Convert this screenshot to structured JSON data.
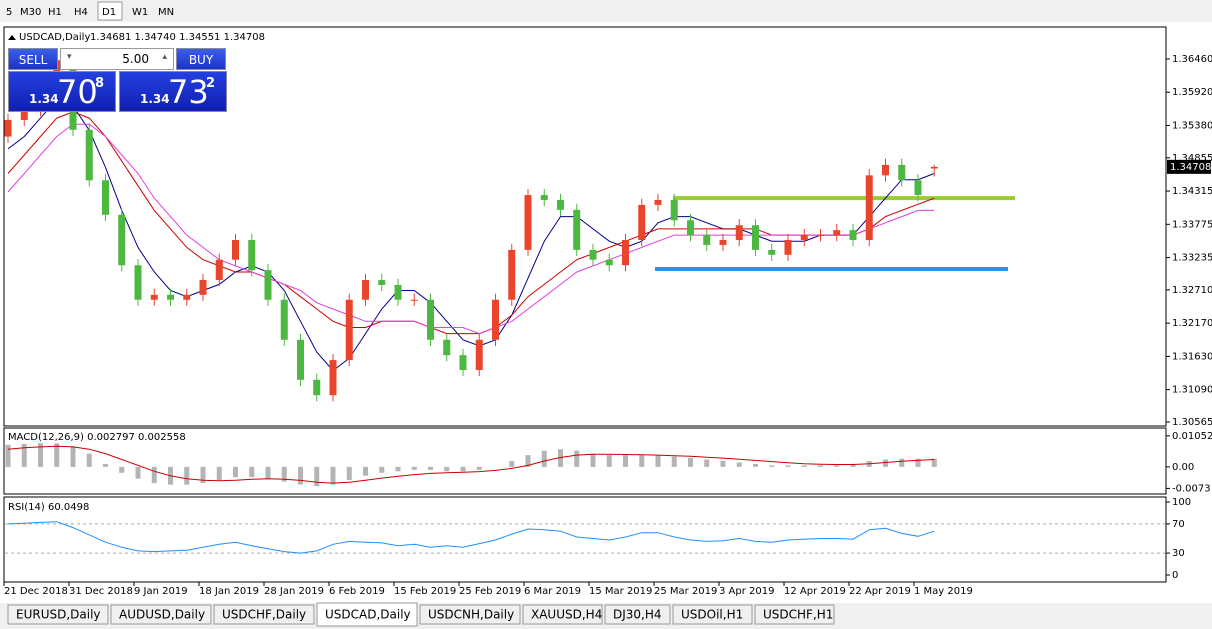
{
  "toolbar": {
    "buttons": [
      "5",
      "M30",
      "H1",
      "H4",
      "D1",
      "W1",
      "MN"
    ],
    "active": 4
  },
  "trade_panel": {
    "sell": "SELL",
    "buy": "BUY",
    "lots": "5.00",
    "bid": {
      "prefix": "1.34",
      "big": "70",
      "small": "8"
    },
    "ask": {
      "prefix": "1.34",
      "big": "73",
      "small": "2"
    }
  },
  "chart_data": {
    "type": "candlestick",
    "title": "USDCAD,Daily",
    "ohlc_text": "1.34681 1.34740 1.34551 1.34708",
    "categories": [
      "21 Dec 2018",
      null,
      null,
      null,
      "31 Dec 2018",
      null,
      null,
      null,
      "9 Jan 2019",
      null,
      null,
      null,
      "18 Jan 2019",
      null,
      null,
      null,
      "28 Jan 2019",
      null,
      null,
      null,
      "6 Feb 2019",
      null,
      null,
      null,
      "15 Feb 2019",
      null,
      null,
      null,
      "25 Feb 2019",
      null,
      null,
      null,
      "6 Mar 2019",
      null,
      null,
      null,
      "15 Mar 2019",
      null,
      null,
      null,
      "25 Mar 2019",
      null,
      null,
      null,
      "3 Apr 2019",
      null,
      null,
      null,
      "12 Apr 2019",
      null,
      null,
      null,
      "22 Apr 2019",
      null,
      null,
      null,
      "1 May 2019",
      null
    ],
    "open": [
      1.352,
      1.3547,
      1.3563,
      1.3596,
      1.3644,
      1.3531,
      1.3449,
      1.3393,
      1.3311,
      1.3255,
      1.3263,
      1.3255,
      1.3263,
      1.3287,
      1.332,
      1.3352,
      1.3303,
      1.3255,
      1.319,
      1.3125,
      1.31,
      1.3157,
      1.3255,
      1.3287,
      1.3279,
      1.3255,
      1.3255,
      1.319,
      1.3165,
      1.3141,
      1.319,
      1.3255,
      1.3336,
      1.3425,
      1.3417,
      1.3401,
      1.3336,
      1.332,
      1.3311,
      1.3352,
      1.3409,
      1.3417,
      1.3384,
      1.336,
      1.3344,
      1.3352,
      1.3376,
      1.3336,
      1.3328,
      1.3352,
      1.336,
      1.336,
      1.3368,
      1.3352,
      1.3457,
      1.3474,
      1.3449,
      1.34681
    ],
    "high": [
      1.3557,
      1.3573,
      1.3606,
      1.3654,
      1.3654,
      1.3541,
      1.3459,
      1.3403,
      1.3321,
      1.3273,
      1.3273,
      1.3273,
      1.3297,
      1.333,
      1.3362,
      1.3362,
      1.3313,
      1.3265,
      1.32,
      1.3135,
      1.3167,
      1.3265,
      1.3297,
      1.3297,
      1.3289,
      1.3265,
      1.3265,
      1.32,
      1.3175,
      1.32,
      1.3265,
      1.3346,
      1.3435,
      1.3435,
      1.3427,
      1.3411,
      1.3346,
      1.333,
      1.3362,
      1.3419,
      1.3427,
      1.3427,
      1.3394,
      1.337,
      1.3362,
      1.3386,
      1.3386,
      1.3346,
      1.3362,
      1.337,
      1.337,
      1.3378,
      1.3378,
      1.3467,
      1.3484,
      1.3484,
      1.3459,
      1.3474
    ],
    "low": [
      1.351,
      1.3537,
      1.3553,
      1.3586,
      1.3521,
      1.3439,
      1.3383,
      1.3301,
      1.3245,
      1.3245,
      1.3245,
      1.3245,
      1.3253,
      1.3277,
      1.331,
      1.3293,
      1.3245,
      1.318,
      1.3115,
      1.309,
      1.309,
      1.3147,
      1.3245,
      1.3269,
      1.3245,
      1.3245,
      1.318,
      1.3155,
      1.3131,
      1.3131,
      1.318,
      1.3245,
      1.3326,
      1.3407,
      1.3391,
      1.3326,
      1.331,
      1.3301,
      1.3301,
      1.3342,
      1.3399,
      1.3374,
      1.335,
      1.3334,
      1.3334,
      1.3342,
      1.3326,
      1.3318,
      1.3318,
      1.3342,
      1.335,
      1.335,
      1.3342,
      1.3342,
      1.3447,
      1.3439,
      1.3415,
      1.34551
    ],
    "close": [
      1.3547,
      1.3563,
      1.3596,
      1.3644,
      1.3531,
      1.3449,
      1.3393,
      1.3311,
      1.3255,
      1.3263,
      1.3255,
      1.3263,
      1.3287,
      1.332,
      1.3352,
      1.3303,
      1.3255,
      1.319,
      1.3125,
      1.31,
      1.3157,
      1.3255,
      1.3287,
      1.3279,
      1.3255,
      1.3255,
      1.319,
      1.3165,
      1.3141,
      1.319,
      1.3255,
      1.3336,
      1.3425,
      1.3417,
      1.3401,
      1.3336,
      1.332,
      1.3311,
      1.3352,
      1.3409,
      1.3417,
      1.3384,
      1.336,
      1.3344,
      1.3352,
      1.3376,
      1.3336,
      1.3328,
      1.3352,
      1.336,
      1.336,
      1.3368,
      1.3352,
      1.3457,
      1.3474,
      1.3449,
      1.3425,
      1.34708
    ],
    "up_color": "#e8452c",
    "down_color": "#4cb83f",
    "ylim": [
      1.305,
      1.3693
    ],
    "yticks": [
      {
        "value": 1.3646,
        "label": "1.36460"
      },
      {
        "value": 1.3592,
        "label": "1.35920"
      },
      {
        "value": 1.3538,
        "label": "1.35380"
      },
      {
        "value": 1.34855,
        "label": "1.34855"
      },
      {
        "value": 1.34315,
        "label": "1.34315"
      },
      {
        "value": 1.33775,
        "label": "1.33775"
      },
      {
        "value": 1.33235,
        "label": "1.33235"
      },
      {
        "value": 1.3271,
        "label": "1.32710"
      },
      {
        "value": 1.3217,
        "label": "1.32170"
      },
      {
        "value": 1.3163,
        "label": "1.31630"
      },
      {
        "value": 1.3109,
        "label": "1.31090"
      },
      {
        "value": 1.30565,
        "label": "1.30565"
      }
    ],
    "moving_averages": [
      {
        "color": "#00008b",
        "values": [
          1.35,
          1.352,
          1.355,
          1.358,
          1.357,
          1.353,
          1.347,
          1.34,
          1.334,
          1.33,
          1.327,
          1.326,
          1.327,
          1.328,
          1.33,
          1.331,
          1.33,
          1.327,
          1.322,
          1.317,
          1.314,
          1.316,
          1.32,
          1.324,
          1.327,
          1.327,
          1.325,
          1.322,
          1.319,
          1.318,
          1.319,
          1.323,
          1.329,
          1.335,
          1.339,
          1.339,
          1.337,
          1.335,
          1.334,
          1.335,
          1.338,
          1.339,
          1.339,
          1.338,
          1.337,
          1.337,
          1.336,
          1.335,
          1.335,
          1.335,
          1.336,
          1.336,
          1.336,
          1.339,
          1.342,
          1.345,
          1.345,
          1.346
        ]
      },
      {
        "color": "#cc0000",
        "values": [
          1.346,
          1.349,
          1.352,
          1.355,
          1.356,
          1.355,
          1.352,
          1.348,
          1.344,
          1.34,
          1.337,
          1.334,
          1.332,
          1.331,
          1.33,
          1.33,
          1.329,
          1.328,
          1.326,
          1.324,
          1.322,
          1.321,
          1.321,
          1.322,
          1.322,
          1.322,
          1.321,
          1.32,
          1.32,
          1.32,
          1.321,
          1.323,
          1.326,
          1.328,
          1.33,
          1.332,
          1.333,
          1.334,
          1.335,
          1.336,
          1.337,
          1.337,
          1.337,
          1.337,
          1.337,
          1.337,
          1.337,
          1.336,
          1.336,
          1.336,
          1.336,
          1.336,
          1.336,
          1.337,
          1.339,
          1.34,
          1.341,
          1.342
        ]
      },
      {
        "color": "#e040e0",
        "values": [
          1.343,
          1.346,
          1.349,
          1.352,
          1.354,
          1.354,
          1.352,
          1.349,
          1.346,
          1.342,
          1.339,
          1.336,
          1.334,
          1.332,
          1.331,
          1.33,
          1.329,
          1.328,
          1.327,
          1.325,
          1.324,
          1.323,
          1.322,
          1.322,
          1.322,
          1.322,
          1.321,
          1.321,
          1.321,
          1.32,
          1.321,
          1.322,
          1.324,
          1.326,
          1.328,
          1.33,
          1.331,
          1.332,
          1.333,
          1.334,
          1.335,
          1.336,
          1.336,
          1.336,
          1.336,
          1.336,
          1.336,
          1.336,
          1.336,
          1.336,
          1.336,
          1.336,
          1.336,
          1.337,
          1.338,
          1.339,
          1.34,
          1.34
        ]
      }
    ],
    "levels": [
      {
        "value": 1.342,
        "color": "#9acd32"
      },
      {
        "value": 1.3305,
        "color": "#3a8fd9"
      }
    ],
    "indicators": [
      {
        "type": "macd",
        "label": "MACD(12,26,9) 0.002797 0.002558",
        "histogram_color": "#b4b4b4",
        "signal_color": "#cc0000",
        "histogram": [
          0.0075,
          0.0078,
          0.008,
          0.008,
          0.007,
          0.0045,
          0.001,
          -0.002,
          -0.004,
          -0.0055,
          -0.006,
          -0.006,
          -0.0055,
          -0.0045,
          -0.0035,
          -0.0035,
          -0.004,
          -0.005,
          -0.006,
          -0.0065,
          -0.006,
          -0.0045,
          -0.003,
          -0.002,
          -0.0015,
          -0.001,
          -0.001,
          -0.0015,
          -0.0015,
          -0.001,
          0,
          0.002,
          0.004,
          0.0055,
          0.006,
          0.0055,
          0.0045,
          0.004,
          0.004,
          0.004,
          0.004,
          0.0035,
          0.003,
          0.0025,
          0.002,
          0.0015,
          0.001,
          0.0005,
          0.0005,
          0.0005,
          0.0005,
          0.0005,
          0.001,
          0.002,
          0.0025,
          0.0028,
          0.0028,
          0.0028
        ],
        "signal": [
          0.006,
          0.0065,
          0.0068,
          0.007,
          0.0068,
          0.006,
          0.0045,
          0.0025,
          0.0005,
          -0.0015,
          -0.003,
          -0.004,
          -0.0045,
          -0.0047,
          -0.0045,
          -0.0042,
          -0.004,
          -0.0042,
          -0.0046,
          -0.0052,
          -0.0055,
          -0.0052,
          -0.0045,
          -0.0038,
          -0.0032,
          -0.0026,
          -0.0022,
          -0.002,
          -0.0018,
          -0.0016,
          -0.0012,
          -0.0005,
          0.0005,
          0.002,
          0.0032,
          0.004,
          0.0043,
          0.0043,
          0.0042,
          0.0041,
          0.004,
          0.0038,
          0.0036,
          0.0033,
          0.003,
          0.0026,
          0.0022,
          0.0018,
          0.0014,
          0.0011,
          0.0009,
          0.0008,
          0.0008,
          0.0011,
          0.0015,
          0.0019,
          0.0022,
          0.0025
        ],
        "ylim": [
          -0.0092,
          0.0132
        ],
        "yticks": [
          0.010525,
          {
            "value": 0,
            "label": "0.00"
          },
          -0.0073
        ]
      },
      {
        "type": "rsi",
        "label": "RSI(14) 60.0498",
        "color": "#1e90ff",
        "values": [
          70,
          71,
          72,
          73,
          65,
          55,
          45,
          38,
          33,
          32,
          33,
          34,
          38,
          42,
          45,
          40,
          36,
          32,
          30,
          33,
          42,
          46,
          45,
          44,
          40,
          42,
          38,
          40,
          38,
          43,
          48,
          56,
          63,
          62,
          60,
          52,
          50,
          48,
          52,
          58,
          58,
          52,
          48,
          46,
          47,
          50,
          46,
          45,
          48,
          49,
          50,
          50,
          49,
          62,
          64,
          57,
          53,
          60
        ],
        "ylim": [
          -9.6,
          105.5
        ],
        "yticks": [
          100,
          70,
          30,
          0
        ],
        "levels": [
          70,
          30
        ]
      }
    ]
  },
  "tabs": [
    "EURUSD,Daily",
    "AUDUSD,Daily",
    "USDCHF,Daily",
    "USDCAD,Daily",
    "USDCNH,Daily",
    "XAUUSD,H4",
    "DJ30,H4",
    "USDOil,H1",
    "USDCHF,H1"
  ],
  "active_tab": 3
}
